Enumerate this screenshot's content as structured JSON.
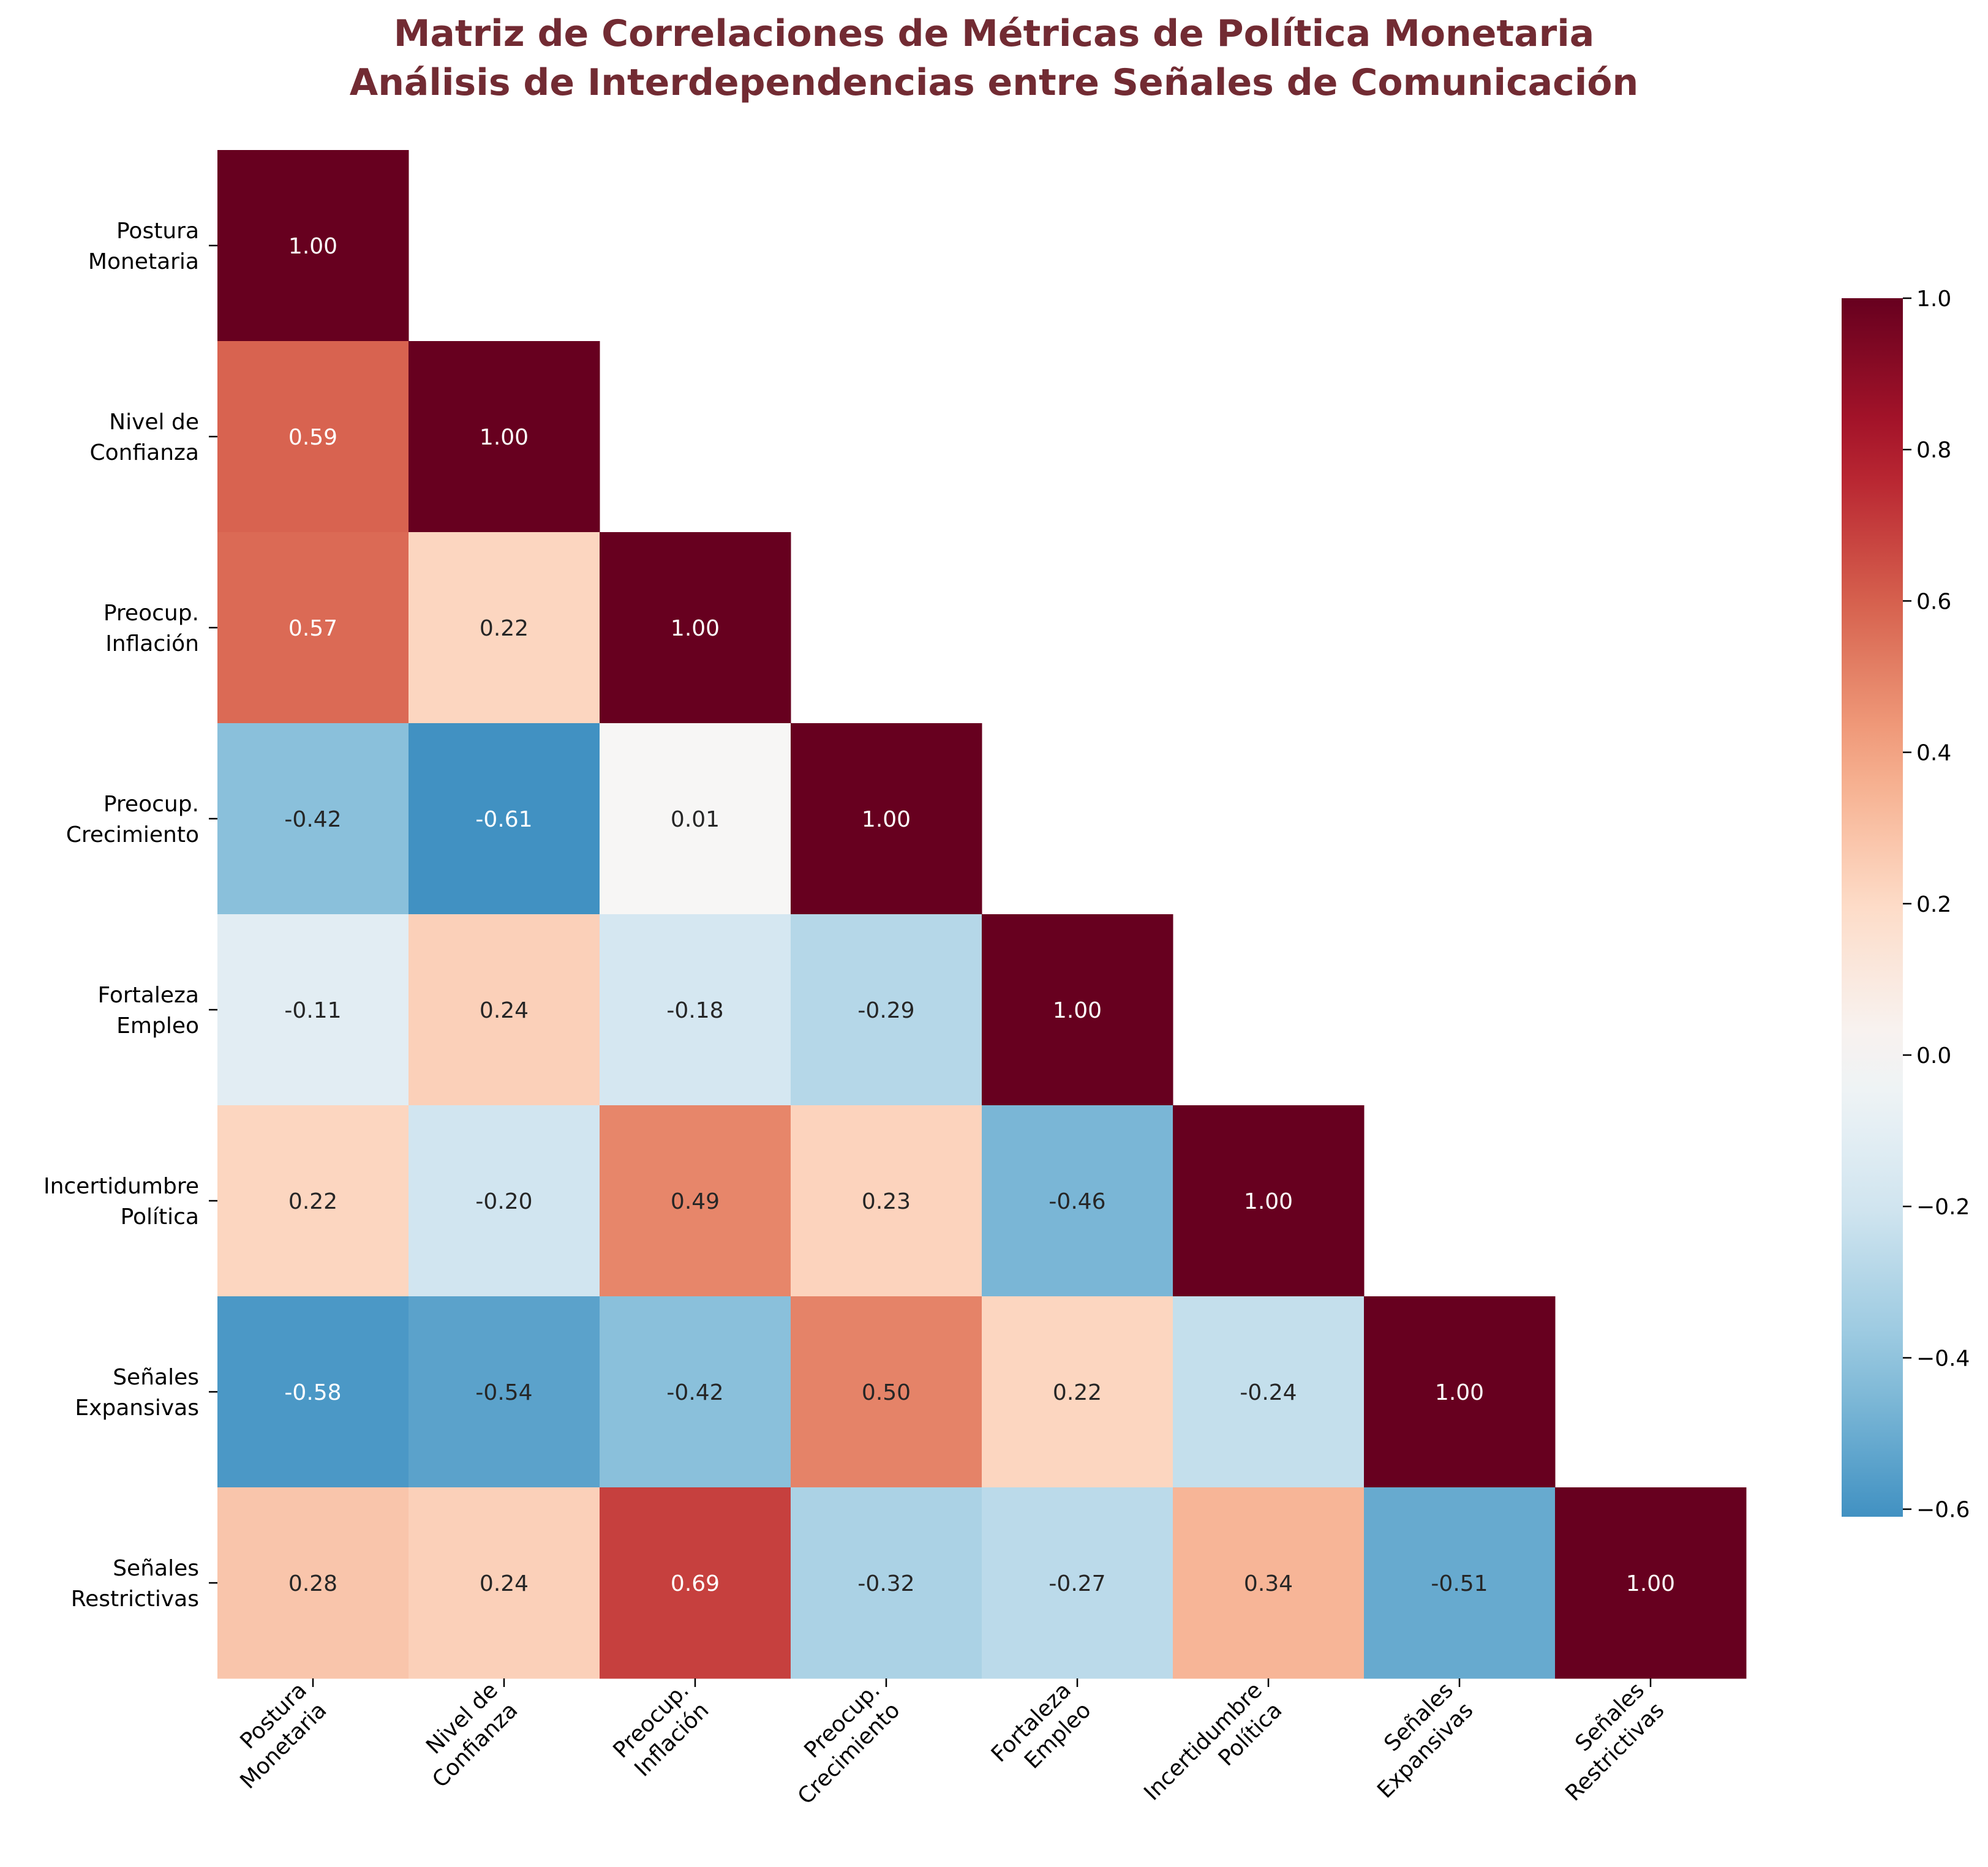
{
  "chart_data": {
    "type": "heatmap",
    "title": "Matriz de Correlaciones de Métricas de Política Monetaria",
    "subtitle": "Análisis de Interdependencias entre Señales de Comunicación",
    "labels": [
      [
        "Postura",
        "Monetaria"
      ],
      [
        "Nivel de",
        "Confianza"
      ],
      [
        "Preocup.",
        "Inflación"
      ],
      [
        "Preocup.",
        "Crecimiento"
      ],
      [
        "Fortaleza",
        "Empleo"
      ],
      [
        "Incertidumbre",
        "Política"
      ],
      [
        "Señales",
        "Expansivas"
      ],
      [
        "Señales",
        "Restrictivas"
      ]
    ],
    "matrix_lower": [
      [
        1.0
      ],
      [
        0.59,
        1.0
      ],
      [
        0.57,
        0.22,
        1.0
      ],
      [
        -0.42,
        -0.61,
        0.01,
        1.0
      ],
      [
        -0.11,
        0.24,
        -0.18,
        -0.29,
        1.0
      ],
      [
        0.22,
        -0.2,
        0.49,
        0.23,
        -0.46,
        1.0
      ],
      [
        -0.58,
        -0.54,
        -0.42,
        0.5,
        0.22,
        -0.24,
        1.0
      ],
      [
        0.28,
        0.24,
        0.69,
        -0.32,
        -0.27,
        0.34,
        -0.51,
        1.0
      ]
    ],
    "mask": "upper-triangle",
    "colormap": "RdBu_r",
    "vmin": -0.61,
    "vmax": 1.0,
    "colorbar_ticks": [
      "1.0",
      "0.8",
      "0.6",
      "0.4",
      "0.2",
      "0.0",
      "−0.2",
      "−0.4",
      "−0.6"
    ],
    "colorbar_tick_values": [
      1.0,
      0.8,
      0.6,
      0.4,
      0.2,
      0.0,
      -0.2,
      -0.4,
      -0.6
    ],
    "annotation_format": "0.00"
  }
}
